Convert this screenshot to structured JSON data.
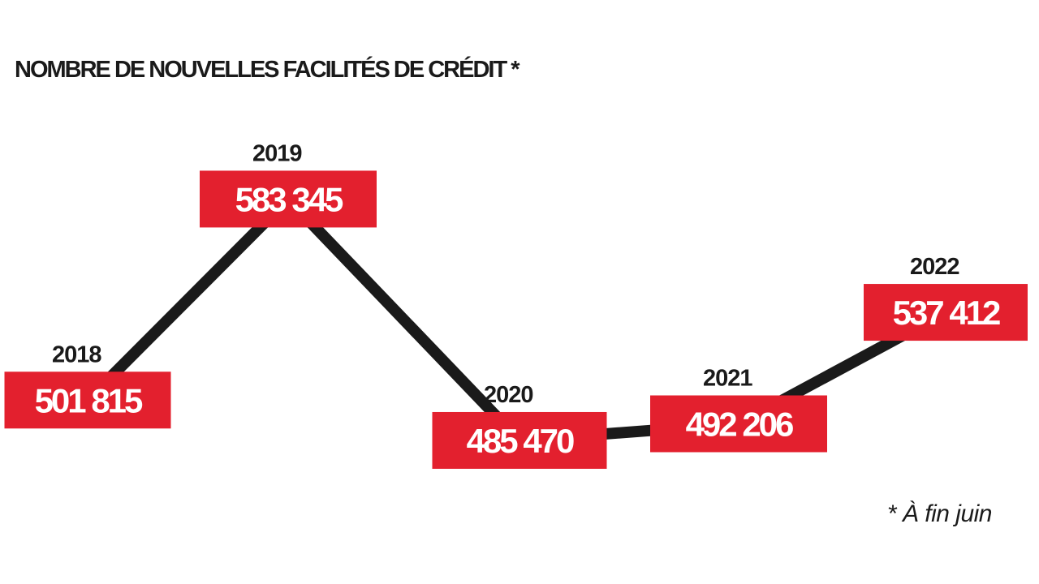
{
  "chart_data": {
    "type": "line",
    "title": "NOMBRE DE NOUVELLES FACILITÉS DE CRÉDIT *",
    "footnote": "* À fin juin",
    "xlabel": "",
    "ylabel": "",
    "grid": false,
    "categories": [
      "2018",
      "2019",
      "2020",
      "2021",
      "2022"
    ],
    "values": [
      501815,
      583345,
      485470,
      492206,
      537412
    ],
    "value_labels": [
      "501 815",
      "583 345",
      "485 470",
      "492 206",
      "537 412"
    ],
    "ylim": [
      470000,
      595000
    ],
    "colors": {
      "line": "#1a1a1a",
      "label_box": "#e3202e",
      "label_text": "#ffffff",
      "year_text": "#1a1a1a",
      "background": "#ffffff"
    }
  }
}
